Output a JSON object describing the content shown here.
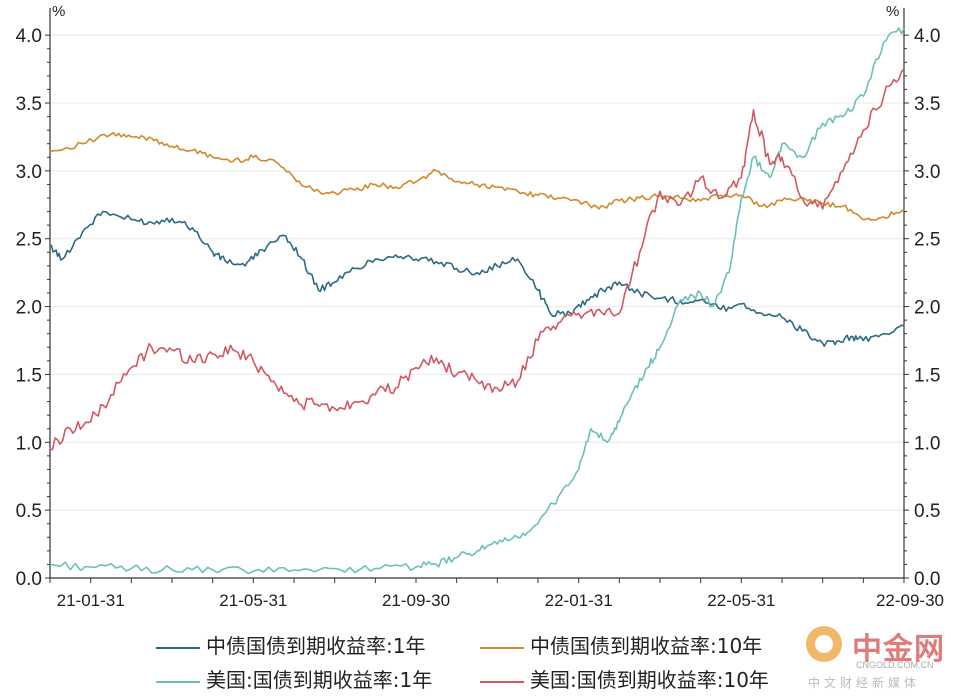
{
  "chart_data": {
    "type": "line",
    "unit_left": "%",
    "unit_right": "%",
    "y_ticks": [
      "0.0",
      "0.5",
      "1.0",
      "1.5",
      "2.0",
      "2.5",
      "3.0",
      "3.5",
      "4.0"
    ],
    "ylim": [
      0,
      4.2
    ],
    "x_tick_labels": [
      "21-01-31",
      "21-05-31",
      "21-09-30",
      "22-01-31",
      "22-05-31",
      "22-09-30"
    ],
    "x_ticks_months": [
      1,
      5,
      9,
      13,
      17,
      21
    ],
    "xlim_months": [
      0,
      21
    ],
    "grid": "horizontal",
    "legend_position": "bottom",
    "series": [
      {
        "name": "中债国债到期收益率:1年",
        "color": "#2b6a80",
        "x": [
          0,
          0.3,
          0.8,
          1.3,
          2,
          2.5,
          3,
          3.5,
          4,
          4.3,
          4.8,
          5.2,
          5.8,
          6.2,
          6.6,
          7,
          7.5,
          8,
          8.5,
          9,
          9.5,
          10,
          10.5,
          11,
          11.5,
          12,
          12.3,
          12.8,
          13.2,
          13.6,
          14,
          14.5,
          15,
          15.5,
          16,
          16.5,
          17,
          17.5,
          18,
          18.5,
          19,
          19.3,
          19.7,
          20,
          20.5,
          21
        ],
        "y": [
          2.45,
          2.35,
          2.55,
          2.7,
          2.64,
          2.62,
          2.65,
          2.58,
          2.4,
          2.34,
          2.3,
          2.42,
          2.52,
          2.35,
          2.12,
          2.18,
          2.28,
          2.35,
          2.38,
          2.35,
          2.33,
          2.28,
          2.25,
          2.3,
          2.35,
          2.12,
          1.95,
          1.95,
          2.05,
          2.12,
          2.18,
          2.1,
          2.06,
          2.04,
          2.05,
          1.98,
          2.02,
          1.95,
          1.92,
          1.82,
          1.73,
          1.72,
          1.78,
          1.75,
          1.8,
          1.86
        ]
      },
      {
        "name": "中债国债到期收益率:10年",
        "color": "#d08a2c",
        "x": [
          0,
          0.8,
          1.5,
          2,
          2.5,
          3,
          3.5,
          4,
          4.5,
          5,
          5.5,
          6,
          6.5,
          7,
          7.5,
          8,
          8.5,
          9,
          9.5,
          10,
          10.5,
          11,
          11.5,
          12,
          12.5,
          13,
          13.5,
          14,
          14.5,
          15,
          15.5,
          16,
          16.5,
          17,
          17.5,
          18,
          18.5,
          19,
          19.5,
          20,
          20.5,
          21
        ],
        "y": [
          3.14,
          3.2,
          3.27,
          3.25,
          3.24,
          3.18,
          3.15,
          3.1,
          3.07,
          3.1,
          3.08,
          2.95,
          2.85,
          2.84,
          2.86,
          2.9,
          2.88,
          2.92,
          3.0,
          2.92,
          2.9,
          2.88,
          2.85,
          2.82,
          2.8,
          2.78,
          2.72,
          2.78,
          2.8,
          2.82,
          2.8,
          2.78,
          2.82,
          2.82,
          2.74,
          2.78,
          2.8,
          2.76,
          2.74,
          2.64,
          2.66,
          2.72
        ]
      },
      {
        "name": "美国:国债到期收益率:1年",
        "color": "#6cc0b8",
        "x": [
          0,
          1,
          2,
          3,
          4,
          5,
          6,
          7,
          8,
          9,
          9.5,
          10,
          10.5,
          11,
          11.5,
          12,
          12.5,
          13,
          13.3,
          13.7,
          14,
          14.3,
          14.7,
          15,
          15.5,
          16,
          16.3,
          16.7,
          17,
          17.3,
          17.7,
          18,
          18.5,
          19,
          19.5,
          20,
          20.5,
          21
        ],
        "y": [
          0.1,
          0.08,
          0.07,
          0.06,
          0.06,
          0.05,
          0.06,
          0.07,
          0.07,
          0.08,
          0.1,
          0.15,
          0.2,
          0.25,
          0.3,
          0.4,
          0.6,
          0.8,
          1.1,
          1.0,
          1.15,
          1.35,
          1.55,
          1.7,
          2.05,
          2.1,
          2.0,
          2.25,
          2.8,
          3.1,
          2.95,
          3.2,
          3.1,
          3.35,
          3.4,
          3.55,
          3.95,
          4.05
        ]
      },
      {
        "name": "美国:国债到期收益率:10年",
        "color": "#d05a62",
        "x": [
          0,
          0.5,
          1,
          1.5,
          2,
          2.5,
          3,
          3.5,
          4,
          4.5,
          5,
          5.5,
          6,
          6.5,
          7,
          7.5,
          8,
          8.5,
          9,
          9.5,
          10,
          10.5,
          11,
          11.5,
          12,
          12.5,
          13,
          13.5,
          14,
          14.5,
          15,
          15.5,
          16,
          16.5,
          17,
          17.3,
          17.7,
          18,
          18.5,
          19,
          19.5,
          20,
          20.5,
          21
        ],
        "y": [
          0.95,
          1.1,
          1.15,
          1.35,
          1.55,
          1.7,
          1.68,
          1.6,
          1.65,
          1.68,
          1.6,
          1.45,
          1.3,
          1.28,
          1.25,
          1.3,
          1.35,
          1.4,
          1.55,
          1.62,
          1.5,
          1.45,
          1.4,
          1.45,
          1.75,
          1.88,
          1.95,
          1.98,
          1.95,
          2.4,
          2.85,
          2.75,
          2.95,
          2.8,
          2.95,
          3.45,
          3.05,
          3.1,
          2.8,
          2.72,
          3.0,
          3.3,
          3.55,
          3.75
        ]
      }
    ]
  },
  "watermark": {
    "logo_text": "中金网",
    "domain": "CNGOLD.COM.CN",
    "subtitle": "中文财经新媒体"
  }
}
